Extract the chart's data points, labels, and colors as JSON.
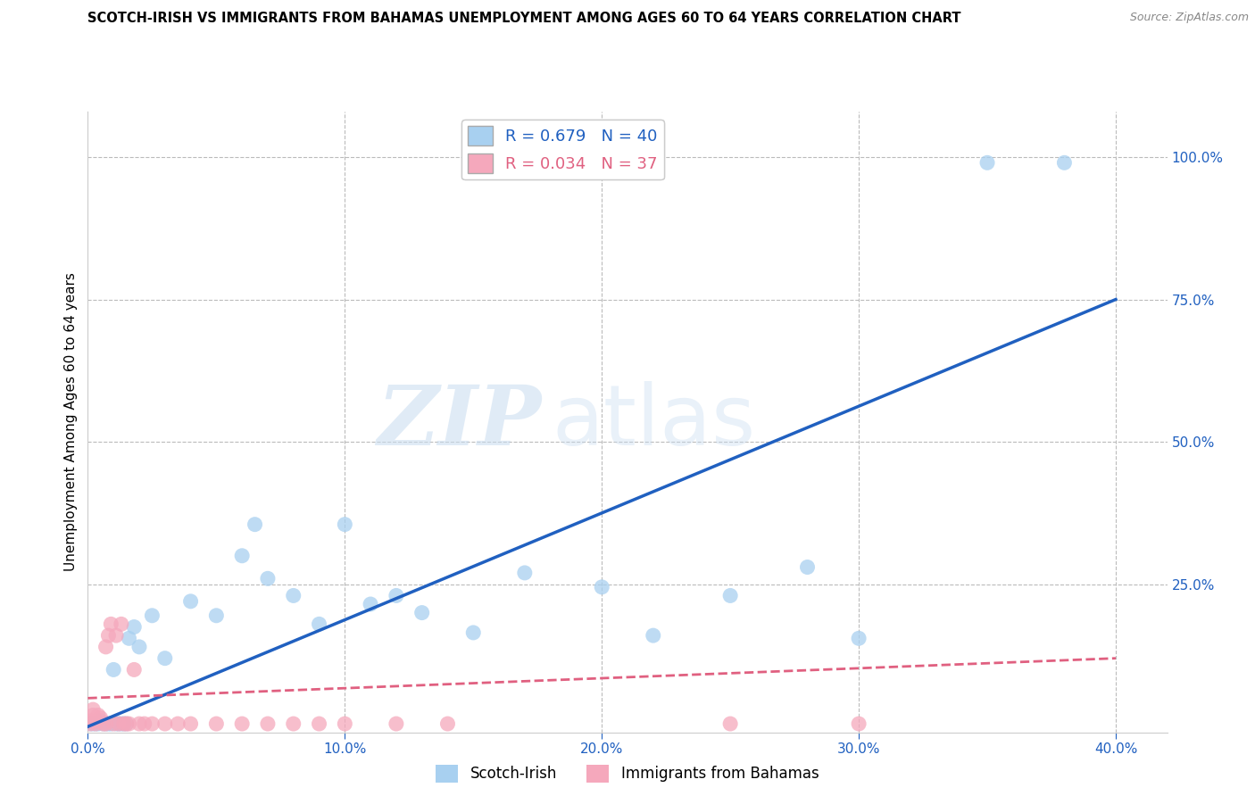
{
  "title": "SCOTCH-IRISH VS IMMIGRANTS FROM BAHAMAS UNEMPLOYMENT AMONG AGES 60 TO 64 YEARS CORRELATION CHART",
  "source": "Source: ZipAtlas.com",
  "ylabel": "Unemployment Among Ages 60 to 64 years",
  "xlim": [
    0.0,
    0.42
  ],
  "ylim": [
    -0.01,
    1.08
  ],
  "xticks": [
    0.0,
    0.1,
    0.2,
    0.3,
    0.4
  ],
  "yticks_right": [
    0.25,
    0.5,
    0.75,
    1.0
  ],
  "scotch_irish_R": 0.679,
  "scotch_irish_N": 40,
  "bahamas_R": 0.034,
  "bahamas_N": 37,
  "scotch_irish_color": "#A8D0F0",
  "bahamas_color": "#F5A8BC",
  "scotch_irish_line_color": "#2060C0",
  "bahamas_line_color": "#E06080",
  "watermark_zip": "ZIP",
  "watermark_atlas": "atlas",
  "si_line_x": [
    0.0,
    0.4
  ],
  "si_line_y": [
    0.0,
    0.75
  ],
  "bah_line_x": [
    0.0,
    0.4
  ],
  "bah_line_y": [
    0.05,
    0.12
  ],
  "scotch_irish_x": [
    0.001,
    0.002,
    0.003,
    0.004,
    0.005,
    0.006,
    0.007,
    0.008,
    0.009,
    0.01,
    0.011,
    0.012,
    0.013,
    0.014,
    0.015,
    0.016,
    0.018,
    0.02,
    0.025,
    0.03,
    0.04,
    0.05,
    0.06,
    0.065,
    0.07,
    0.08,
    0.09,
    0.1,
    0.11,
    0.12,
    0.13,
    0.15,
    0.17,
    0.2,
    0.22,
    0.25,
    0.28,
    0.3,
    0.35,
    0.38
  ],
  "scotch_irish_y": [
    0.005,
    0.005,
    0.005,
    0.005,
    0.01,
    0.005,
    0.005,
    0.005,
    0.005,
    0.1,
    0.005,
    0.005,
    0.005,
    0.005,
    0.005,
    0.155,
    0.175,
    0.14,
    0.195,
    0.12,
    0.22,
    0.195,
    0.3,
    0.355,
    0.26,
    0.23,
    0.18,
    0.355,
    0.215,
    0.23,
    0.2,
    0.165,
    0.27,
    0.245,
    0.16,
    0.23,
    0.28,
    0.155,
    0.99,
    0.99
  ],
  "bahamas_x": [
    0.001,
    0.001,
    0.002,
    0.002,
    0.003,
    0.003,
    0.004,
    0.005,
    0.006,
    0.007,
    0.007,
    0.008,
    0.009,
    0.01,
    0.011,
    0.012,
    0.013,
    0.014,
    0.015,
    0.016,
    0.018,
    0.02,
    0.022,
    0.025,
    0.03,
    0.035,
    0.04,
    0.05,
    0.06,
    0.07,
    0.08,
    0.09,
    0.1,
    0.12,
    0.14,
    0.25,
    0.3
  ],
  "bahamas_y": [
    0.005,
    0.01,
    0.02,
    0.03,
    0.005,
    0.01,
    0.02,
    0.015,
    0.005,
    0.005,
    0.14,
    0.16,
    0.18,
    0.005,
    0.16,
    0.005,
    0.18,
    0.005,
    0.005,
    0.005,
    0.1,
    0.005,
    0.005,
    0.005,
    0.005,
    0.005,
    0.005,
    0.005,
    0.005,
    0.005,
    0.005,
    0.005,
    0.005,
    0.005,
    0.005,
    0.005,
    0.005
  ]
}
